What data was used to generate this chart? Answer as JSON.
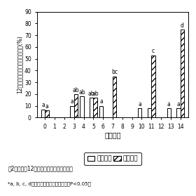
{
  "categories": [
    0,
    1,
    2,
    3,
    4,
    5,
    6,
    7,
    8,
    9,
    10,
    11,
    12,
    13,
    14
  ],
  "low_values": [
    7,
    0,
    0,
    10,
    18,
    17,
    10,
    0,
    0,
    0,
    8,
    8,
    0,
    8,
    8
  ],
  "high_values": [
    6,
    0,
    0,
    20,
    0,
    17,
    0,
    35,
    0,
    0,
    0,
    53,
    0,
    0,
    75
  ],
  "low_color": "#ffffff",
  "high_color": "#ffffff",
  "low_hatch": "",
  "high_hatch": "////",
  "ylabel": "12倍希釈液の発芽インデックス(%)",
  "xlabel": "経過日数",
  "ylim": [
    0,
    90
  ],
  "yticks": [
    0,
    10,
    20,
    30,
    40,
    50,
    60,
    70,
    80,
    90
  ],
  "legend_low": "低曙気区",
  "legend_high": "高曙気区",
  "bar_width": 0.38,
  "annotations": {
    "0": {
      "low": "a",
      "high": "a"
    },
    "3": {
      "low": "a",
      "high": "ab"
    },
    "4": {
      "low": "ab",
      "high": ""
    },
    "5": {
      "low": "ab",
      "high": "ab"
    },
    "6": {
      "low": "a",
      "high": ""
    },
    "7": {
      "low": "",
      "high": "bc"
    },
    "10": {
      "low": "a",
      "high": ""
    },
    "11": {
      "low": "",
      "high": "c"
    },
    "13": {
      "low": "a",
      "high": ""
    },
    "14": {
      "low": "a",
      "high": "d"
    }
  },
  "title_fig": "嘦2　脱離液12希釈液の発芽インデックス",
  "caption": "*a, b, c, d：異符号間に有意差あり　（P<0.05）",
  "background": "#ffffff",
  "edge_color": "#000000"
}
